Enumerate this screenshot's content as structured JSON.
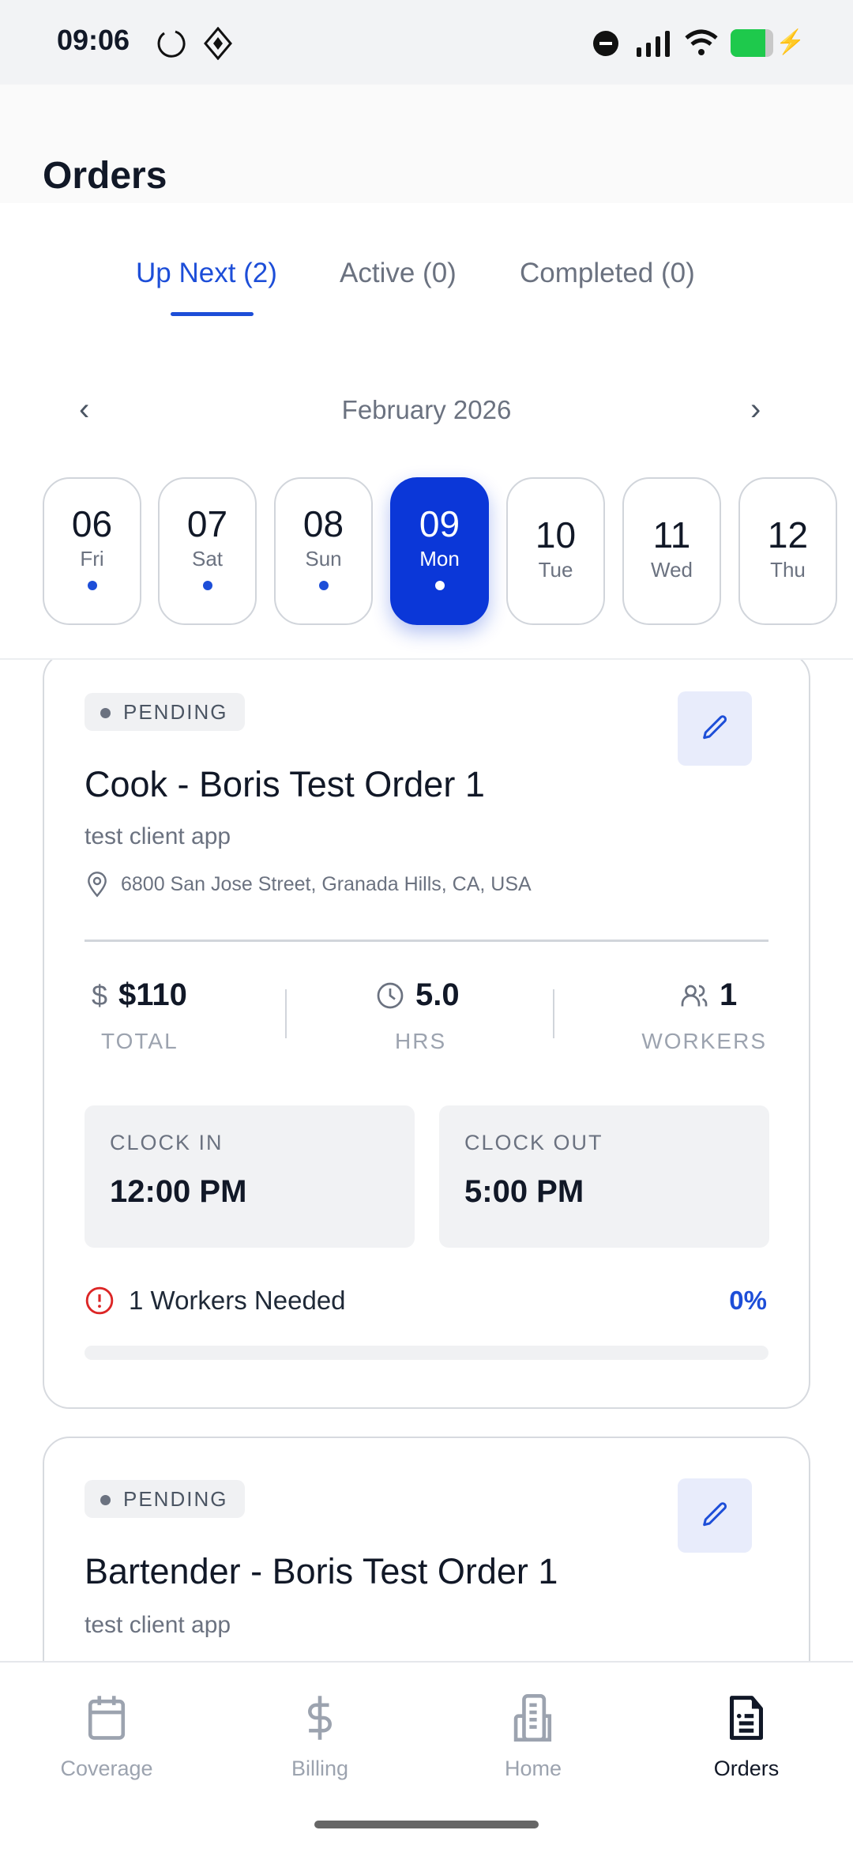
{
  "status_bar": {
    "time": "09:06",
    "battery_color": "#1ec94c"
  },
  "header": {
    "title": "Orders"
  },
  "tabs": [
    {
      "label": "Up Next (2)",
      "active": true
    },
    {
      "label": "Active (0)"
    },
    {
      "label": "Completed (0)"
    }
  ],
  "calendar": {
    "month": "February 2026",
    "days": [
      {
        "num": "06",
        "dow": "Fri",
        "has_orders": true
      },
      {
        "num": "07",
        "dow": "Sat",
        "has_orders": true
      },
      {
        "num": "08",
        "dow": "Sun",
        "has_orders": true
      },
      {
        "num": "09",
        "dow": "Mon",
        "has_orders": true,
        "selected": true
      },
      {
        "num": "10",
        "dow": "Tue"
      },
      {
        "num": "11",
        "dow": "Wed"
      },
      {
        "num": "12",
        "dow": "Thu"
      }
    ]
  },
  "orders": [
    {
      "status": "PENDING",
      "title": "Cook - Boris Test Order 1",
      "client": "test client app",
      "address": "6800 San Jose Street, Granada Hills, CA, USA",
      "total": "$110",
      "total_label": "TOTAL",
      "hours": "5.0",
      "hours_label": "HRS",
      "workers": "1",
      "workers_label": "WORKERS",
      "clock_in_label": "CLOCK IN",
      "clock_in": "12:00 PM",
      "clock_out_label": "CLOCK OUT",
      "clock_out": "5:00 PM",
      "needed": "1 Workers Needed",
      "fill_percent_label": "0%",
      "fill_percent": 0
    },
    {
      "status": "PENDING",
      "title": "Bartender - Boris Test Order 1",
      "client": "test client app"
    }
  ],
  "nav": [
    {
      "label": "Coverage",
      "icon": "calendar-icon"
    },
    {
      "label": "Billing",
      "icon": "dollar-icon"
    },
    {
      "label": "Home",
      "icon": "building-icon"
    },
    {
      "label": "Orders",
      "icon": "document-icon",
      "active": true
    }
  ],
  "colors": {
    "accent": "#1d4ed8",
    "selected_day": "#0b37d8",
    "warning": "#dc2626"
  }
}
